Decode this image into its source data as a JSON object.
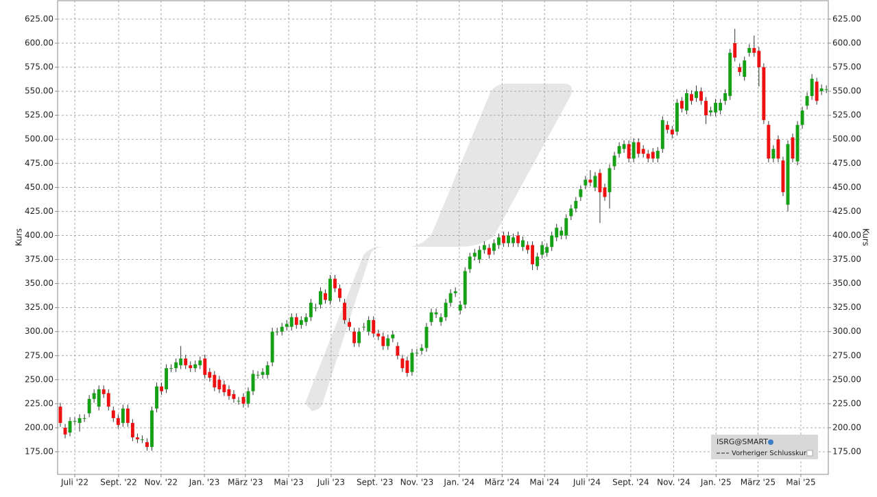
{
  "chart_data": {
    "type": "candlestick",
    "legend": {
      "symbol": "ISRG@SMART",
      "previous_close": "Vorheriger Schlusskurs"
    },
    "ylabel": "Kurs",
    "up_color": "#16a016",
    "down_color": "#ee1111",
    "grid": true,
    "ylim": [
      151.5,
      644.2
    ],
    "yticks": [
      {
        "value": 175,
        "label": "175.00"
      },
      {
        "value": 200,
        "label": "200.00"
      },
      {
        "value": 225,
        "label": "225.00"
      },
      {
        "value": 250,
        "label": "250.00"
      },
      {
        "value": 275,
        "label": "275.00"
      },
      {
        "value": 300,
        "label": "300.00"
      },
      {
        "value": 325,
        "label": "325.00"
      },
      {
        "value": 350,
        "label": "350.00"
      },
      {
        "value": 375,
        "label": "375.00"
      },
      {
        "value": 400,
        "label": "400.00"
      },
      {
        "value": 425,
        "label": "425.00"
      },
      {
        "value": 450,
        "label": "450.00"
      },
      {
        "value": 475,
        "label": "475.00"
      },
      {
        "value": 500,
        "label": "500.00"
      },
      {
        "value": 525,
        "label": "525.00"
      },
      {
        "value": 550,
        "label": "550.00"
      },
      {
        "value": 575,
        "label": "575.00"
      },
      {
        "value": 600,
        "label": "600.00"
      },
      {
        "value": 625,
        "label": "625.00"
      }
    ],
    "xlim": [
      -0.57,
      159.4
    ],
    "xticks": [
      {
        "value": 3.0,
        "label": "Juli '22"
      },
      {
        "value": 12.1,
        "label": "Sept. '22"
      },
      {
        "value": 20.9,
        "label": "Nov. '22"
      },
      {
        "value": 29.9,
        "label": "Jan. '23"
      },
      {
        "value": 38.4,
        "label": "März '23"
      },
      {
        "value": 47.4,
        "label": "Mai '23"
      },
      {
        "value": 56.2,
        "label": "Juli '23"
      },
      {
        "value": 65.3,
        "label": "Sept. '23"
      },
      {
        "value": 74.0,
        "label": "Nov. '23"
      },
      {
        "value": 82.8,
        "label": "Jan. '24"
      },
      {
        "value": 91.7,
        "label": "März '24"
      },
      {
        "value": 100.5,
        "label": "Mai '24"
      },
      {
        "value": 109.3,
        "label": "Juli '24"
      },
      {
        "value": 118.4,
        "label": "Sept. '24"
      },
      {
        "value": 127.3,
        "label": "Nov. '24"
      },
      {
        "value": 136.1,
        "label": "Jan. '25"
      },
      {
        "value": 144.8,
        "label": "März '25"
      },
      {
        "value": 153.7,
        "label": "Mai '25"
      }
    ],
    "x": [
      0,
      1,
      2,
      3,
      4,
      5,
      6,
      7,
      8,
      9,
      10,
      11,
      12,
      13,
      14,
      15,
      16,
      17,
      18,
      19,
      20,
      21,
      22,
      23,
      24,
      25,
      26,
      27,
      28,
      29,
      30,
      31,
      32,
      33,
      34,
      35,
      36,
      37,
      38,
      39,
      40,
      41,
      42,
      43,
      44,
      45,
      46,
      47,
      48,
      49,
      50,
      51,
      52,
      53,
      54,
      55,
      56,
      57,
      58,
      59,
      60,
      61,
      62,
      63,
      64,
      65,
      66,
      67,
      68,
      69,
      70,
      71,
      72,
      73,
      74,
      75,
      76,
      77,
      78,
      79,
      80,
      81,
      82,
      83,
      84,
      85,
      86,
      87,
      88,
      89,
      90,
      91,
      92,
      93,
      94,
      95,
      96,
      97,
      98,
      99,
      100,
      101,
      102,
      103,
      104,
      105,
      106,
      107,
      108,
      109,
      110,
      111,
      112,
      113,
      114,
      115,
      116,
      117,
      118,
      119,
      120,
      121,
      122,
      123,
      124,
      125,
      126,
      127,
      128,
      129,
      130,
      131,
      132,
      133,
      134,
      135,
      136,
      137,
      138,
      139,
      140,
      141,
      142,
      143,
      144,
      145,
      146,
      147,
      148,
      149,
      150,
      151,
      152,
      153,
      154,
      155,
      156,
      157,
      158,
      159
    ],
    "open": [
      222,
      200,
      195,
      207,
      205,
      210,
      215,
      230,
      222,
      240,
      236,
      218,
      210,
      205,
      220,
      205,
      190,
      188,
      185,
      180,
      220,
      243,
      240,
      262,
      262,
      265,
      272,
      265,
      262,
      265,
      272,
      258,
      255,
      250,
      245,
      240,
      235,
      228,
      232,
      225,
      238,
      255,
      255,
      255,
      268,
      300,
      300,
      305,
      305,
      315,
      307,
      310,
      315,
      325,
      328,
      340,
      332,
      355,
      345,
      330,
      310,
      300,
      288,
      305,
      300,
      312,
      298,
      295,
      285,
      293,
      285,
      272,
      270,
      258,
      278,
      280,
      283,
      310,
      318,
      310,
      315,
      330,
      340,
      322,
      328,
      365,
      378,
      375,
      385,
      387,
      384,
      390,
      400,
      392,
      392,
      400,
      388,
      390,
      390,
      368,
      380,
      382,
      388,
      398,
      400,
      400,
      420,
      428,
      440,
      452,
      458,
      450,
      465,
      450,
      445,
      472,
      485,
      490,
      495,
      480,
      497,
      490,
      485,
      487,
      480,
      490,
      515,
      510,
      508,
      540,
      530,
      547,
      543,
      550,
      540,
      528,
      528,
      530,
      540,
      545,
      600,
      575,
      565,
      590,
      595,
      592,
      575,
      515,
      480,
      500,
      478,
      432,
      502,
      477,
      515,
      535,
      545,
      560,
      550,
      552
    ],
    "high": [
      226,
      204,
      211,
      211,
      214,
      214,
      234,
      240,
      244,
      244,
      240,
      222,
      214,
      224,
      224,
      209,
      194,
      192,
      189,
      222,
      247,
      247,
      266,
      266,
      272,
      285,
      276,
      269,
      270,
      274,
      276,
      262,
      259,
      254,
      249,
      244,
      239,
      232,
      236,
      242,
      260,
      259,
      262,
      269,
      304,
      304,
      309,
      312,
      319,
      319,
      316,
      319,
      334,
      329,
      346,
      344,
      359,
      359,
      349,
      334,
      314,
      304,
      304,
      309,
      316,
      316,
      302,
      299,
      297,
      301,
      289,
      276,
      274,
      282,
      282,
      287,
      309,
      324,
      324,
      319,
      334,
      344,
      346,
      332,
      367,
      382,
      386,
      389,
      394,
      391,
      396,
      402,
      404,
      404,
      402,
      404,
      399,
      394,
      394,
      382,
      394,
      392,
      404,
      412,
      409,
      422,
      432,
      440,
      452,
      462,
      468,
      466,
      469,
      454,
      474,
      487,
      497,
      499,
      499,
      501,
      501,
      494,
      489,
      491,
      492,
      524,
      519,
      514,
      542,
      544,
      552,
      551,
      556,
      554,
      544,
      534,
      542,
      542,
      552,
      594,
      615,
      579,
      586,
      599,
      608,
      596,
      579,
      519,
      494,
      504,
      482,
      499,
      506,
      519,
      534,
      549,
      568,
      564,
      557,
      556
    ],
    "low": [
      201,
      189,
      191,
      203,
      196,
      206,
      211,
      226,
      218,
      231,
      218,
      206,
      199,
      201,
      201,
      186,
      184,
      184,
      176,
      176,
      216,
      234,
      236,
      258,
      258,
      261,
      261,
      258,
      258,
      261,
      251,
      248,
      238,
      236,
      233,
      229,
      226,
      224,
      221,
      221,
      234,
      251,
      251,
      251,
      264,
      296,
      296,
      301,
      301,
      303,
      303,
      306,
      311,
      321,
      324,
      329,
      328,
      341,
      331,
      308,
      301,
      284,
      284,
      301,
      296,
      294,
      291,
      281,
      281,
      289,
      271,
      258,
      253,
      254,
      274,
      276,
      279,
      306,
      314,
      306,
      311,
      326,
      336,
      318,
      324,
      361,
      374,
      371,
      381,
      376,
      380,
      386,
      388,
      388,
      388,
      388,
      384,
      381,
      364,
      364,
      376,
      378,
      384,
      394,
      396,
      396,
      416,
      424,
      436,
      448,
      451,
      446,
      413,
      436,
      428,
      468,
      481,
      486,
      476,
      476,
      481,
      481,
      476,
      476,
      476,
      486,
      506,
      501,
      504,
      528,
      526,
      536,
      539,
      536,
      516,
      524,
      524,
      526,
      536,
      541,
      581,
      566,
      561,
      586,
      586,
      555,
      516,
      476,
      476,
      476,
      441,
      425,
      476,
      473,
      511,
      531,
      541,
      536,
      546,
      548
    ],
    "close": [
      205,
      193,
      207,
      207,
      210,
      210,
      230,
      236,
      240,
      235,
      222,
      210,
      203,
      220,
      205,
      190,
      188,
      188,
      180,
      218,
      243,
      238,
      262,
      262,
      268,
      272,
      265,
      262,
      266,
      270,
      255,
      252,
      242,
      240,
      237,
      233,
      230,
      228,
      225,
      238,
      256,
      255,
      258,
      265,
      300,
      300,
      305,
      308,
      315,
      307,
      312,
      315,
      330,
      325,
      342,
      333,
      355,
      345,
      335,
      312,
      305,
      288,
      300,
      305,
      312,
      298,
      295,
      285,
      293,
      297,
      275,
      262,
      257,
      278,
      278,
      283,
      305,
      320,
      320,
      315,
      330,
      340,
      342,
      328,
      363,
      378,
      382,
      385,
      390,
      380,
      392,
      398,
      392,
      400,
      398,
      392,
      395,
      385,
      370,
      378,
      390,
      388,
      400,
      408,
      405,
      418,
      428,
      436,
      448,
      458,
      455,
      462,
      445,
      440,
      470,
      483,
      493,
      495,
      480,
      497,
      485,
      485,
      480,
      480,
      488,
      520,
      510,
      505,
      538,
      532,
      548,
      540,
      550,
      540,
      525,
      530,
      538,
      538,
      548,
      590,
      585,
      570,
      582,
      595,
      590,
      575,
      520,
      480,
      490,
      480,
      445,
      495,
      480,
      515,
      530,
      545,
      563,
      540,
      553,
      552
    ]
  }
}
